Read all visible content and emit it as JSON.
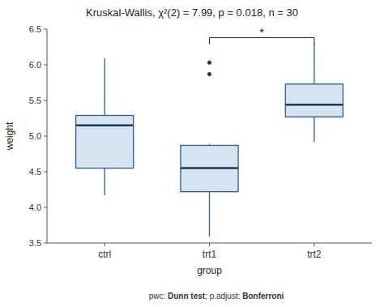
{
  "chart_data": {
    "type": "box",
    "title": "Kruskal-Wallis, χ²(2) = 7.99, p = 0.018, n = 30",
    "xlabel": "group",
    "ylabel": "weight",
    "categories": [
      "ctrl",
      "trt1",
      "trt2"
    ],
    "boxes": [
      {
        "whisker_low": 4.17,
        "q1": 4.55,
        "median": 5.15,
        "q3": 5.29,
        "whisker_high": 6.09,
        "outliers": []
      },
      {
        "whisker_low": 3.59,
        "q1": 4.22,
        "median": 4.55,
        "q3": 4.87,
        "whisker_high": 4.89,
        "outliers": [
          5.87,
          6.03
        ]
      },
      {
        "whisker_low": 4.92,
        "q1": 5.27,
        "median": 5.44,
        "q3": 5.73,
        "whisker_high": 6.31,
        "outliers": []
      }
    ],
    "ylim": [
      3.5,
      6.5
    ],
    "yticks": [
      3.5,
      {
        "value": 4,
        "label": "4.0"
      },
      4.5,
      {
        "value": 5,
        "label": "5.0"
      },
      5.5,
      {
        "value": 6,
        "label": "6.0"
      },
      6.5
    ],
    "bracket": {
      "from": "trt1",
      "to": "trt2",
      "y": 6.38,
      "label": "*"
    },
    "footer": [
      {
        "text": "pwc: ",
        "bold": false
      },
      {
        "text": "Dunn test",
        "bold": true
      },
      {
        "text": "; p.adjust: ",
        "bold": false
      },
      {
        "text": "Bonferroni",
        "bold": true
      }
    ]
  }
}
